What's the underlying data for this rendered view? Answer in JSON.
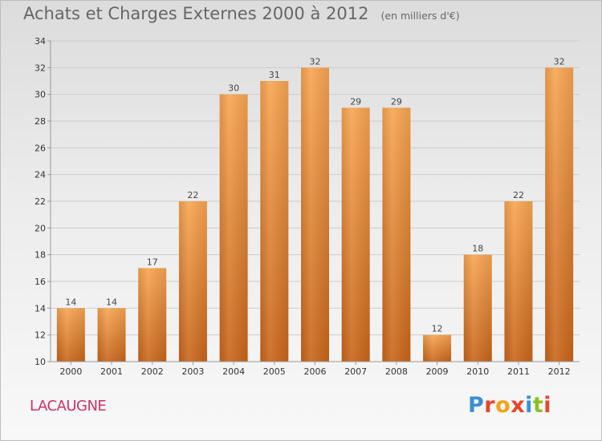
{
  "title": "Achats et Charges Externes 2000 à 2012",
  "units": "(en milliers d'€)",
  "commune": "LACAUGNE",
  "logo": {
    "text": "Proxiti",
    "letter_colors": [
      "#3a8fd6",
      "#e8452c",
      "#f2a21b",
      "#e8452c",
      "#3a8fd6",
      "#8cbf26",
      "#e8452c"
    ]
  },
  "colors": {
    "bar_top": "#f7a552",
    "bar_bottom": "#c8651a",
    "grid": "#cccccc",
    "axis": "#999999"
  },
  "chart_data": {
    "type": "bar",
    "title": "Achats et Charges Externes 2000 à 2012",
    "categories": [
      "2000",
      "2001",
      "2002",
      "2003",
      "2004",
      "2005",
      "2006",
      "2007",
      "2008",
      "2009",
      "2010",
      "2011",
      "2012"
    ],
    "values": [
      14,
      14,
      17,
      22,
      30,
      31,
      32,
      29,
      29,
      12,
      18,
      22,
      32
    ],
    "ylim": [
      10,
      34
    ],
    "yticks": [
      10,
      12,
      14,
      16,
      18,
      20,
      22,
      24,
      26,
      28,
      30,
      32,
      34
    ],
    "grid": true,
    "xlabel": "",
    "ylabel": ""
  }
}
